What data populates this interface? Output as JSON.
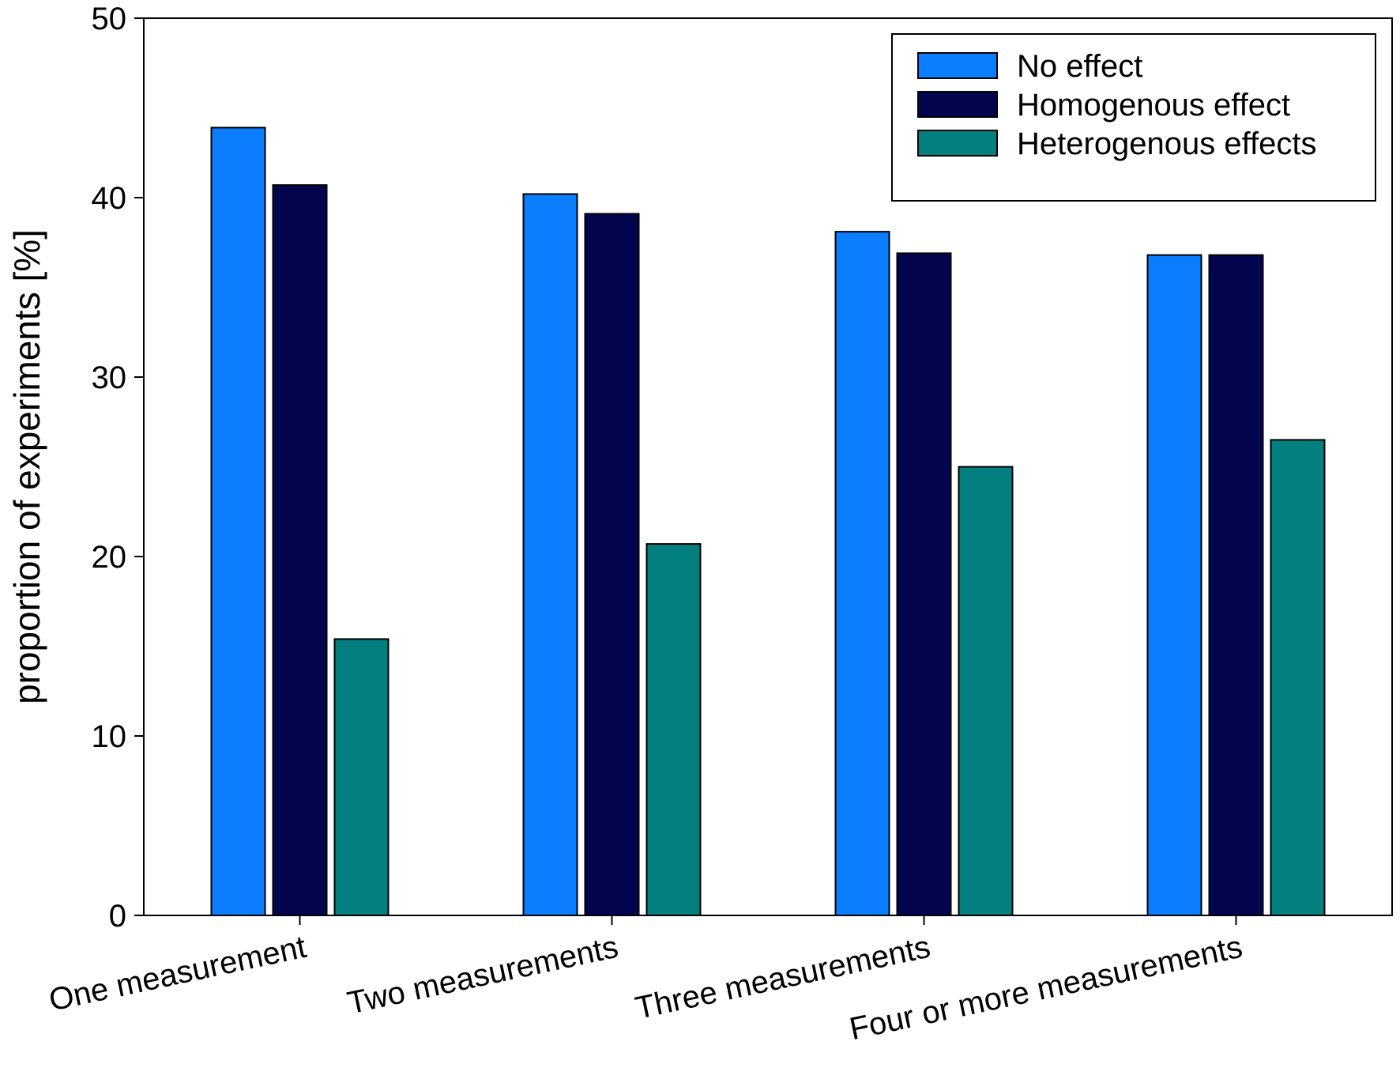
{
  "chart_data": {
    "type": "bar",
    "title": "",
    "xlabel": "",
    "ylabel": "proportion of experiments [%]",
    "ylim": [
      0,
      50
    ],
    "yticks": [
      0,
      10,
      20,
      30,
      40,
      50
    ],
    "grid": false,
    "legend_position": "top-right",
    "categories": [
      "One measurement",
      "Two measurements",
      "Three measurements",
      "Four or more measurements"
    ],
    "series": [
      {
        "name": "No effect",
        "color": "#0A7EFE",
        "values": [
          43.9,
          40.2,
          38.1,
          36.8
        ]
      },
      {
        "name": "Homogenous effect",
        "color": "#03064E",
        "values": [
          40.7,
          39.1,
          36.9,
          36.8
        ]
      },
      {
        "name": "Heterogenous effects",
        "color": "#047F7F",
        "values": [
          15.4,
          20.7,
          25.0,
          26.5
        ]
      }
    ]
  }
}
